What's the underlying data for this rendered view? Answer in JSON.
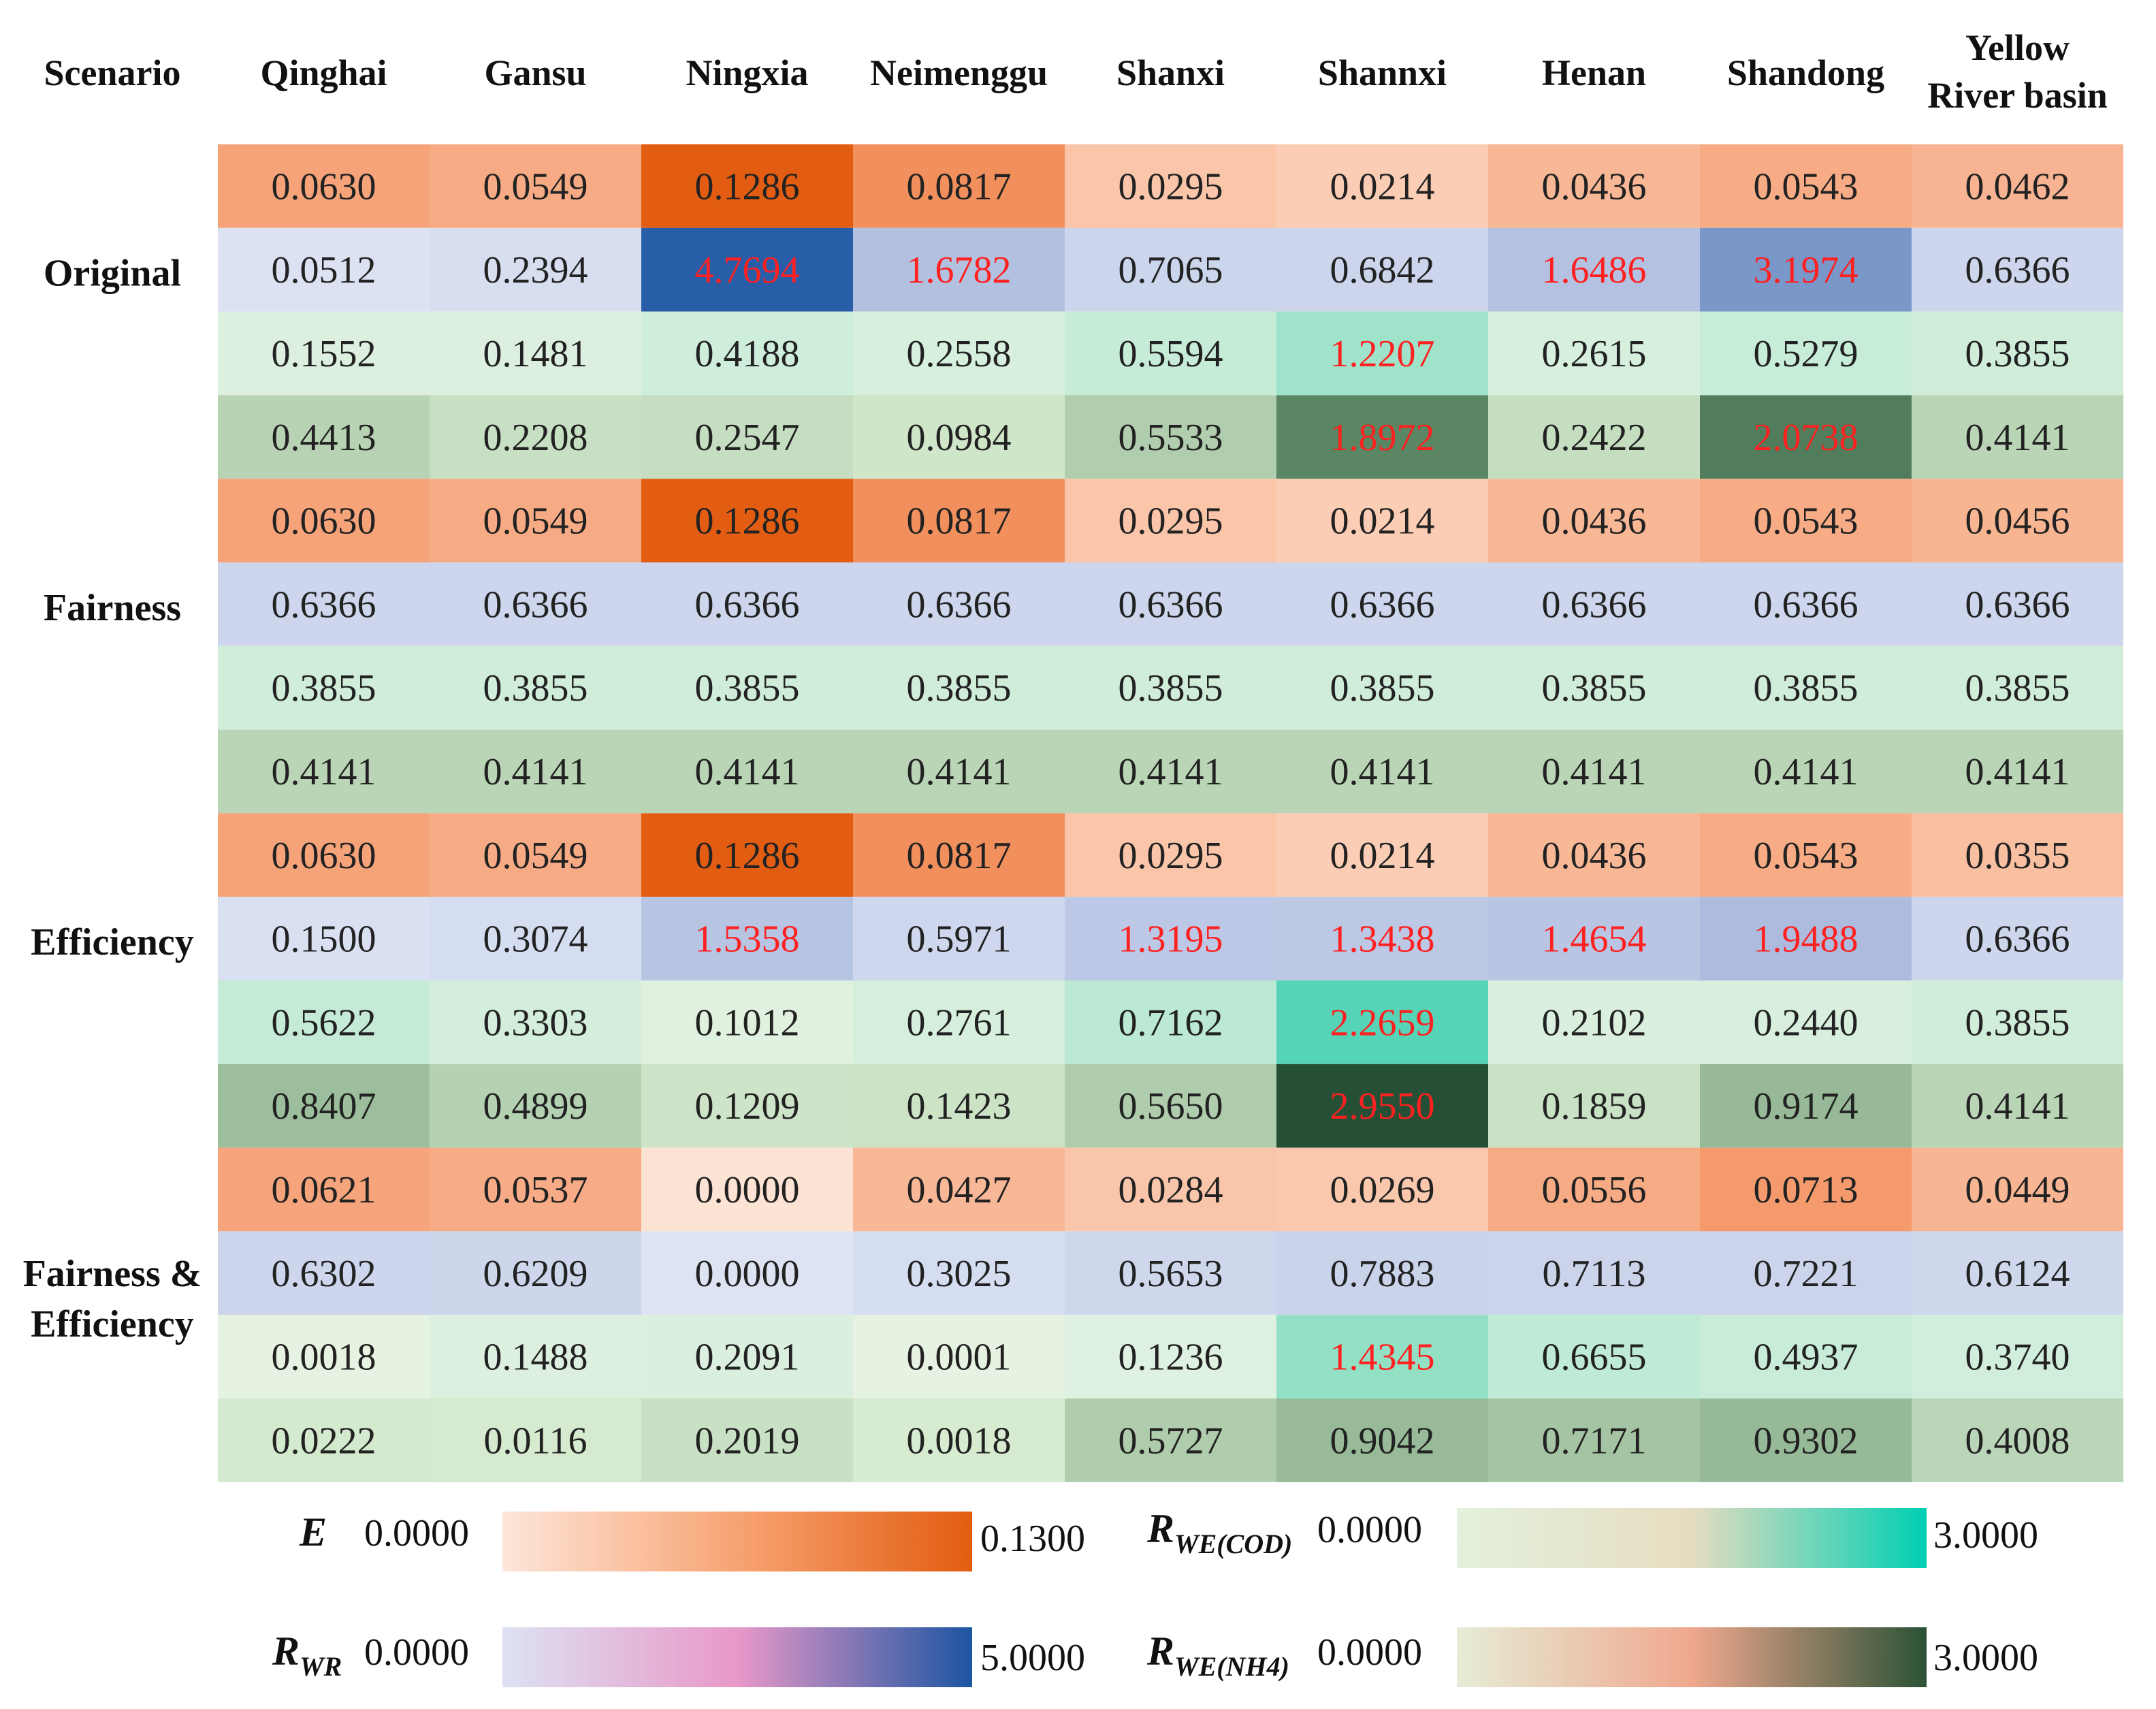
{
  "chart_data": {
    "type": "heatmap",
    "title": "",
    "corner_label": "Scenario",
    "columns": [
      "Qinghai",
      "Gansu",
      "Ningxia",
      "Neimenggu",
      "Shanxi",
      "Shannxi",
      "Henan",
      "Shandong",
      "Yellow River basin"
    ],
    "scenarios": [
      {
        "name": "Original",
        "rows": [
          {
            "metric": "E",
            "values": [
              "0.0630",
              "0.0549",
              "0.1286",
              "0.0817",
              "0.0295",
              "0.0214",
              "0.0436",
              "0.0543",
              "0.0462"
            ]
          },
          {
            "metric": "RWR",
            "values": [
              "0.0512",
              "0.2394",
              "4.7694",
              "1.6782",
              "0.7065",
              "0.6842",
              "1.6486",
              "3.1974",
              "0.6366"
            ]
          },
          {
            "metric": "RWE(COD)",
            "values": [
              "0.1552",
              "0.1481",
              "0.4188",
              "0.2558",
              "0.5594",
              "1.2207",
              "0.2615",
              "0.5279",
              "0.3855"
            ]
          },
          {
            "metric": "RWE(NH4)",
            "values": [
              "0.4413",
              "0.2208",
              "0.2547",
              "0.0984",
              "0.5533",
              "1.8972",
              "0.2422",
              "2.0738",
              "0.4141"
            ]
          }
        ]
      },
      {
        "name": "Fairness",
        "rows": [
          {
            "metric": "E",
            "values": [
              "0.0630",
              "0.0549",
              "0.1286",
              "0.0817",
              "0.0295",
              "0.0214",
              "0.0436",
              "0.0543",
              "0.0456"
            ]
          },
          {
            "metric": "RWR",
            "values": [
              "0.6366",
              "0.6366",
              "0.6366",
              "0.6366",
              "0.6366",
              "0.6366",
              "0.6366",
              "0.6366",
              "0.6366"
            ]
          },
          {
            "metric": "RWE(COD)",
            "values": [
              "0.3855",
              "0.3855",
              "0.3855",
              "0.3855",
              "0.3855",
              "0.3855",
              "0.3855",
              "0.3855",
              "0.3855"
            ]
          },
          {
            "metric": "RWE(NH4)",
            "values": [
              "0.4141",
              "0.4141",
              "0.4141",
              "0.4141",
              "0.4141",
              "0.4141",
              "0.4141",
              "0.4141",
              "0.4141"
            ]
          }
        ]
      },
      {
        "name": "Efficiency",
        "rows": [
          {
            "metric": "E",
            "values": [
              "0.0630",
              "0.0549",
              "0.1286",
              "0.0817",
              "0.0295",
              "0.0214",
              "0.0436",
              "0.0543",
              "0.0355"
            ]
          },
          {
            "metric": "RWR",
            "values": [
              "0.1500",
              "0.3074",
              "1.5358",
              "0.5971",
              "1.3195",
              "1.3438",
              "1.4654",
              "1.9488",
              "0.6366"
            ]
          },
          {
            "metric": "RWE(COD)",
            "values": [
              "0.5622",
              "0.3303",
              "0.1012",
              "0.2761",
              "0.7162",
              "2.2659",
              "0.2102",
              "0.2440",
              "0.3855"
            ]
          },
          {
            "metric": "RWE(NH4)",
            "values": [
              "0.8407",
              "0.4899",
              "0.1209",
              "0.1423",
              "0.5650",
              "2.9550",
              "0.1859",
              "0.9174",
              "0.4141"
            ]
          }
        ]
      },
      {
        "name": "Fairness & Efficiency",
        "rows": [
          {
            "metric": "E",
            "values": [
              "0.0621",
              "0.0537",
              "0.0000",
              "0.0427",
              "0.0284",
              "0.0269",
              "0.0556",
              "0.0713",
              "0.0449"
            ]
          },
          {
            "metric": "RWR",
            "values": [
              "0.6302",
              "0.6209",
              "0.0000",
              "0.3025",
              "0.5653",
              "0.7883",
              "0.7113",
              "0.7221",
              "0.6124"
            ]
          },
          {
            "metric": "RWE(COD)",
            "values": [
              "0.0018",
              "0.1488",
              "0.2091",
              "0.0001",
              "0.1236",
              "1.4345",
              "0.6655",
              "0.4937",
              "0.3740"
            ]
          },
          {
            "metric": "RWE(NH4)",
            "values": [
              "0.0222",
              "0.0116",
              "0.2019",
              "0.0018",
              "0.5727",
              "0.9042",
              "0.7171",
              "0.9302",
              "0.4008"
            ]
          }
        ]
      }
    ],
    "highlight_threshold": 1.0,
    "highlight_color": "#ff2020",
    "legends": [
      {
        "id": "E",
        "symbol": "E",
        "subscript": "",
        "min": 0.0,
        "max": 0.13,
        "min_label": "0.0000",
        "max_label": "0.1300",
        "colors": [
          "#fde6da",
          "#f7a373",
          "#e25c10"
        ]
      },
      {
        "id": "RWR",
        "symbol": "R",
        "subscript": "WR",
        "min": 0.0,
        "max": 5.0,
        "min_label": "0.0000",
        "max_label": "5.0000",
        "colors": [
          "#dde2f3",
          "#e898c8",
          "#1c55a2"
        ]
      },
      {
        "id": "RWE(COD)",
        "symbol": "R",
        "subscript": "WE(COD)",
        "min": 0.0,
        "max": 3.0,
        "min_label": "0.0000",
        "max_label": "3.0000",
        "colors": [
          "#e4f1dd",
          "#e6dcc0",
          "#00cfb3"
        ]
      },
      {
        "id": "RWE(NH4)",
        "symbol": "R",
        "subscript": "WE(NH4)",
        "min": 0.0,
        "max": 3.0,
        "min_label": "0.0000",
        "max_label": "3.0000",
        "colors": [
          "#e6ecd6",
          "#efa88e",
          "#2b5236"
        ]
      }
    ]
  }
}
